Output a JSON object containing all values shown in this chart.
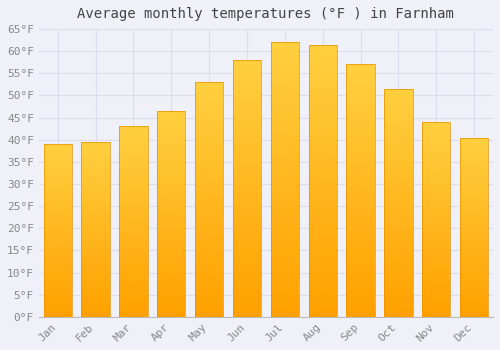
{
  "title": "Average monthly temperatures (°F ) in Farnham",
  "months": [
    "Jan",
    "Feb",
    "Mar",
    "Apr",
    "May",
    "Jun",
    "Jul",
    "Aug",
    "Sep",
    "Oct",
    "Nov",
    "Dec"
  ],
  "values": [
    39,
    39.5,
    43,
    46.5,
    53,
    58,
    62,
    61.5,
    57,
    51.5,
    44,
    40.5
  ],
  "bar_color_top": "#FFD040",
  "bar_color_bottom": "#FFA000",
  "bar_edge_color": "#E89000",
  "background_color": "#F0F0F8",
  "plot_bg_color": "#F0F0F8",
  "grid_color": "#DDDDEE",
  "tick_label_color": "#888888",
  "title_color": "#444444",
  "ylim": [
    0,
    65
  ],
  "yticks": [
    0,
    5,
    10,
    15,
    20,
    25,
    30,
    35,
    40,
    45,
    50,
    55,
    60,
    65
  ],
  "title_fontsize": 10,
  "tick_fontsize": 8,
  "bar_width": 0.75
}
